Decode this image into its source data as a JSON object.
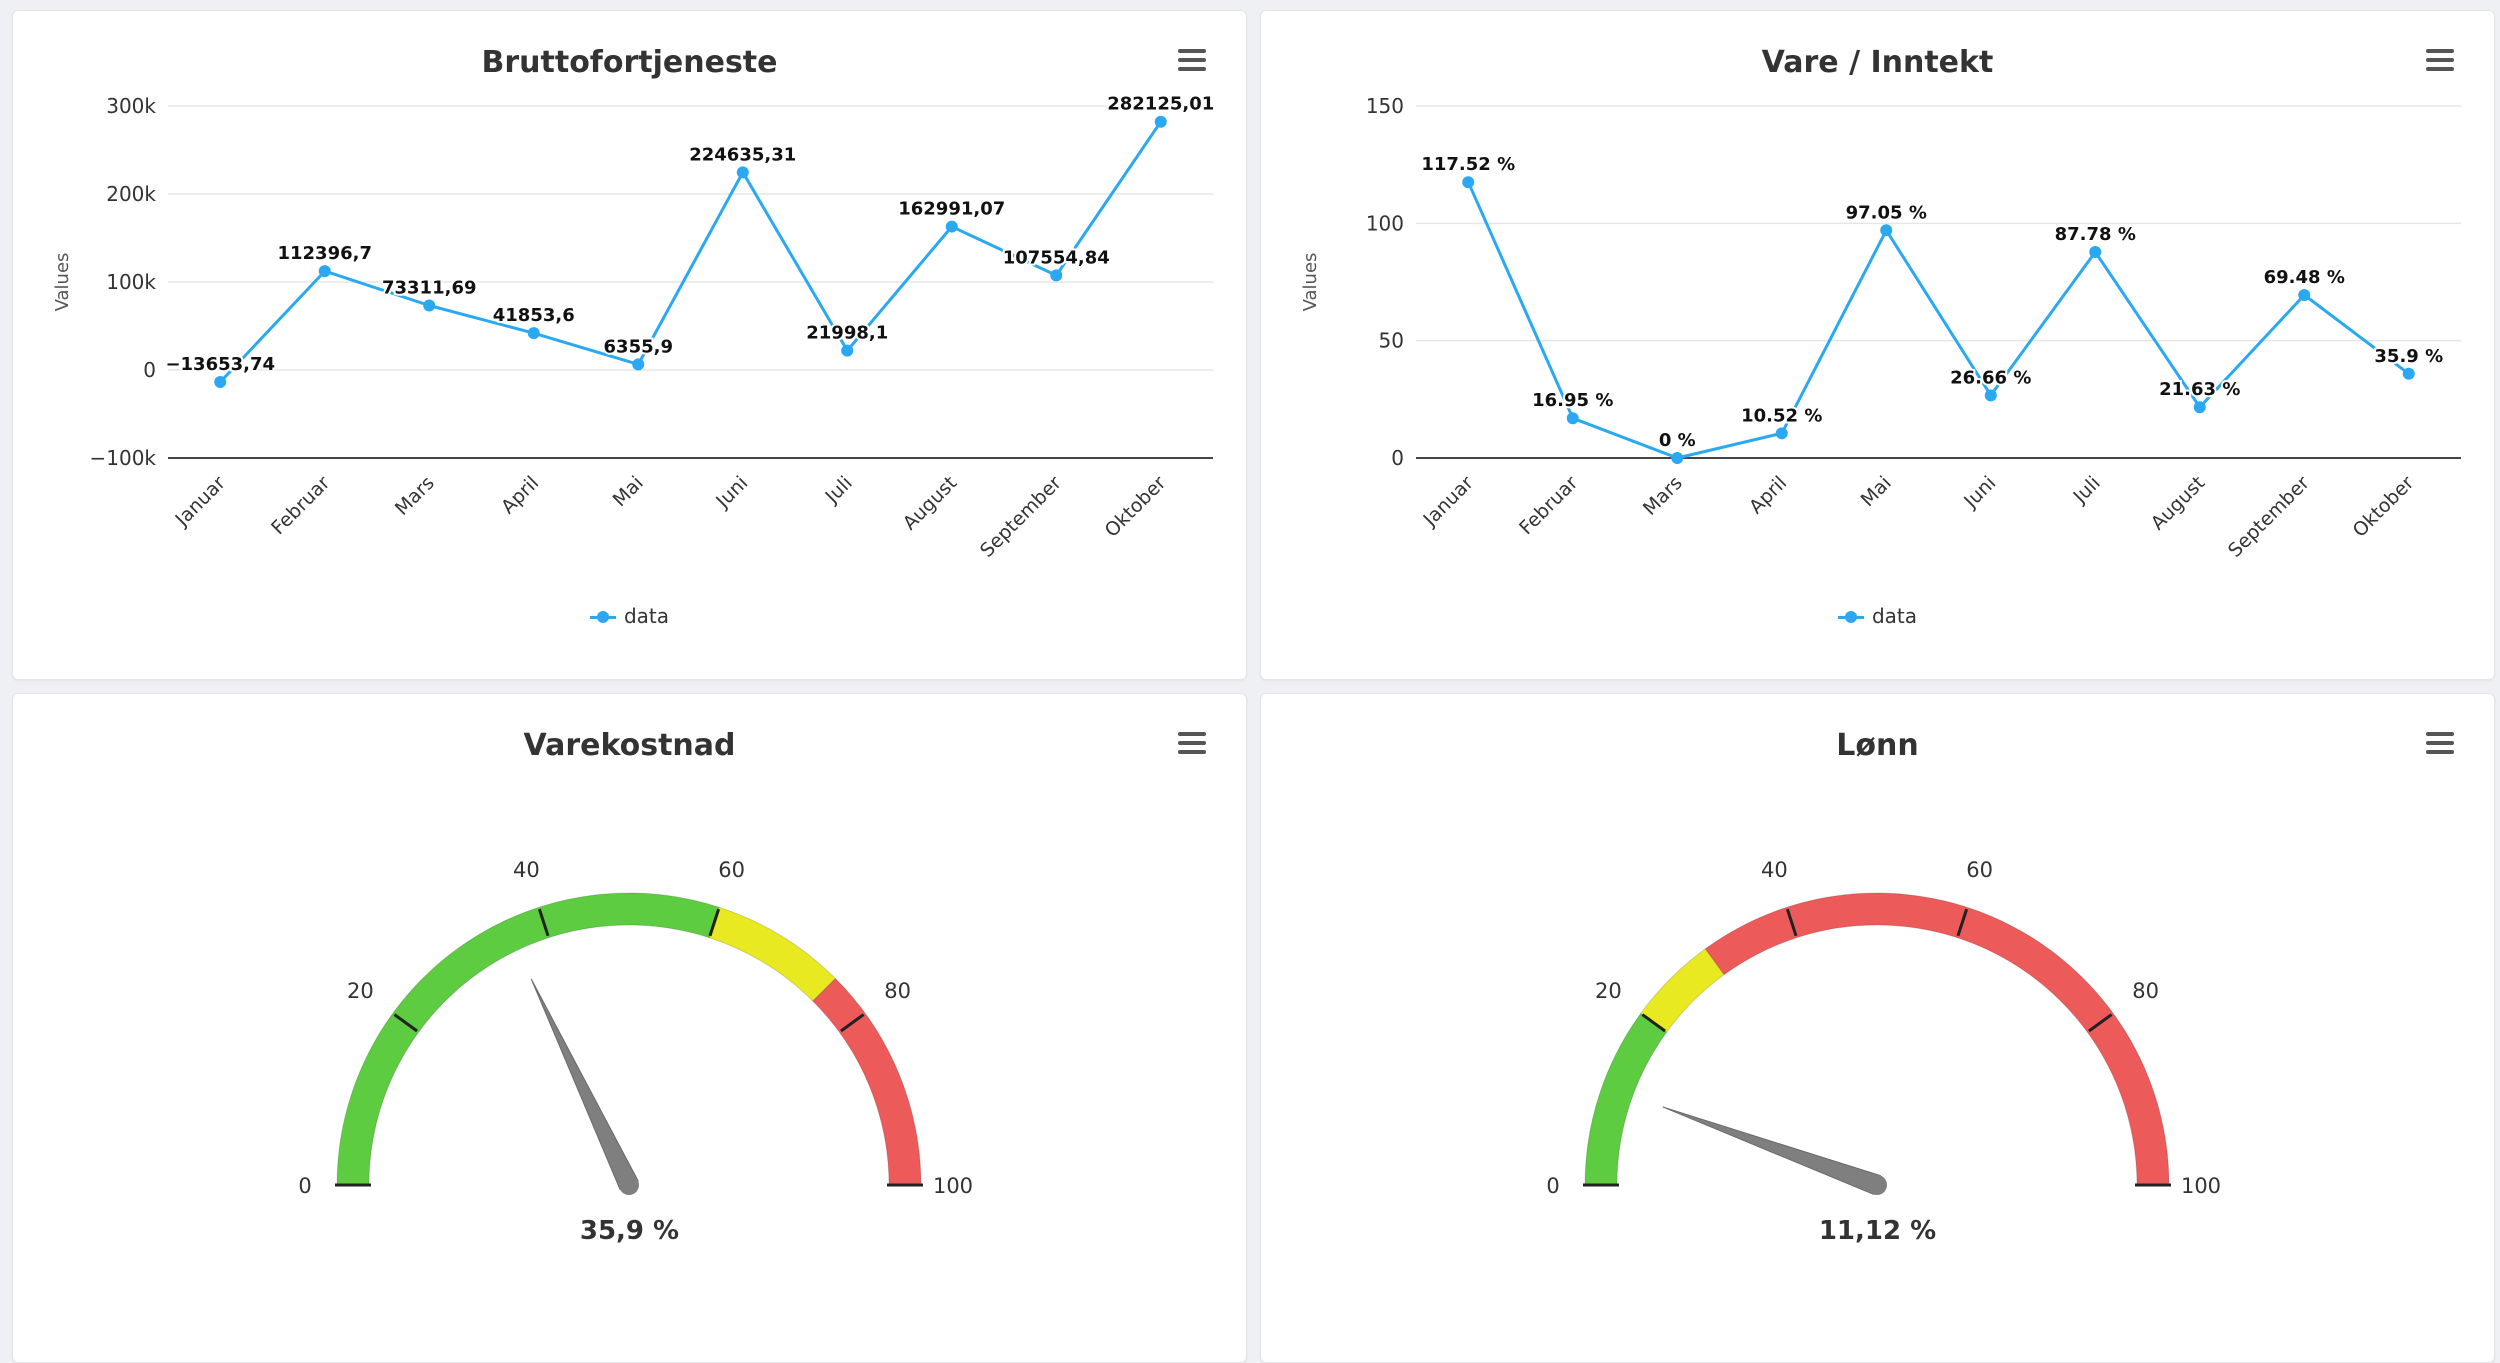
{
  "chart_data": [
    {
      "type": "line",
      "title": "Bruttofortjeneste",
      "ylabel": "Values",
      "xlabel": "",
      "categories": [
        "Januar",
        "Februar",
        "Mars",
        "April",
        "Mai",
        "Juni",
        "Juli",
        "August",
        "September",
        "Oktober"
      ],
      "series": [
        {
          "name": "data",
          "color": "#2aa9f2",
          "values": [
            -13653.74,
            112396.7,
            73311.69,
            41853.6,
            6355.9,
            224635.31,
            21998.1,
            162991.07,
            107554.84,
            282125.01
          ]
        }
      ],
      "data_labels": [
        "−13653,74",
        "112396,7",
        "73311,69",
        "41853,6",
        "6355,9",
        "224635,31",
        "21998,1",
        "162991,07",
        "107554,84",
        "282125,01"
      ],
      "ylim": [
        -100000,
        300000
      ],
      "yticks": [
        -100000,
        0,
        100000,
        200000,
        300000
      ],
      "ytick_labels": [
        "−100k",
        "0",
        "100k",
        "200k",
        "300k"
      ],
      "legend": "bottom-center"
    },
    {
      "type": "line",
      "title": "Vare / Inntekt",
      "ylabel": "Values",
      "xlabel": "",
      "categories": [
        "Januar",
        "Februar",
        "Mars",
        "April",
        "Mai",
        "Juni",
        "Juli",
        "August",
        "September",
        "Oktober"
      ],
      "series": [
        {
          "name": "data",
          "color": "#2aa9f2",
          "values": [
            117.52,
            16.95,
            0,
            10.52,
            97.05,
            26.66,
            87.78,
            21.63,
            69.48,
            35.9
          ]
        }
      ],
      "data_labels": [
        "117.52 %",
        "16.95 %",
        "0 %",
        "10.52 %",
        "97.05 %",
        "26.66 %",
        "87.78 %",
        "21.63 %",
        "69.48 %",
        "35.9 %"
      ],
      "ylim": [
        0,
        150
      ],
      "yticks": [
        0,
        50,
        100,
        150
      ],
      "ytick_labels": [
        "0",
        "50",
        "100",
        "150"
      ],
      "legend": "bottom-center"
    },
    {
      "type": "gauge",
      "title": "Varekostnad",
      "value": 35.9,
      "value_label": "35,9 %",
      "min": 0,
      "max": 100,
      "ticks": [
        0,
        20,
        40,
        60,
        80,
        100
      ],
      "tick_labels": [
        "0",
        "20",
        "40",
        "60",
        "80",
        "100"
      ],
      "bands": [
        {
          "from": 0,
          "to": 60,
          "color": "#5dcc41"
        },
        {
          "from": 60,
          "to": 75,
          "color": "#e8e920"
        },
        {
          "from": 75,
          "to": 100,
          "color": "#ec5a5a"
        }
      ]
    },
    {
      "type": "gauge",
      "title": "Lønn",
      "value": 11.12,
      "value_label": "11,12 %",
      "min": 0,
      "max": 100,
      "ticks": [
        0,
        20,
        40,
        60,
        80,
        100
      ],
      "tick_labels": [
        "0",
        "20",
        "40",
        "60",
        "80",
        "100"
      ],
      "bands": [
        {
          "from": 0,
          "to": 20,
          "color": "#5dcc41"
        },
        {
          "from": 20,
          "to": 30,
          "color": "#e8e920"
        },
        {
          "from": 30,
          "to": 100,
          "color": "#ec5a5a"
        }
      ]
    }
  ]
}
